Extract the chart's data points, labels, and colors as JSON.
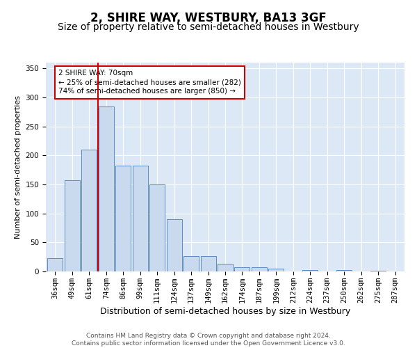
{
  "title": "2, SHIRE WAY, WESTBURY, BA13 3GF",
  "subtitle": "Size of property relative to semi-detached houses in Westbury",
  "xlabel": "Distribution of semi-detached houses by size in Westbury",
  "ylabel": "Number of semi-detached properties",
  "categories": [
    "36sqm",
    "49sqm",
    "61sqm",
    "74sqm",
    "86sqm",
    "99sqm",
    "111sqm",
    "124sqm",
    "137sqm",
    "149sqm",
    "162sqm",
    "174sqm",
    "187sqm",
    "199sqm",
    "212sqm",
    "224sqm",
    "237sqm",
    "250sqm",
    "262sqm",
    "275sqm",
    "287sqm"
  ],
  "values": [
    23,
    157,
    210,
    285,
    183,
    183,
    150,
    90,
    27,
    27,
    13,
    7,
    7,
    5,
    0,
    3,
    0,
    3,
    0,
    1,
    0
  ],
  "bar_color": "#c9d9ee",
  "bar_edge_color": "#5b8ac5",
  "vline_position": 2.5,
  "vline_color": "#cc0000",
  "annotation_text": "2 SHIRE WAY: 70sqm\n← 25% of semi-detached houses are smaller (282)\n74% of semi-detached houses are larger (850) →",
  "annotation_box_color": "#ffffff",
  "annotation_box_edge": "#cc0000",
  "ylim": [
    0,
    360
  ],
  "yticks": [
    0,
    50,
    100,
    150,
    200,
    250,
    300,
    350
  ],
  "footnote": "Contains HM Land Registry data © Crown copyright and database right 2024.\nContains public sector information licensed under the Open Government Licence v3.0.",
  "background_color": "#ffffff",
  "plot_bg_color": "#dce8f5",
  "grid_color": "#ffffff",
  "title_fontsize": 12,
  "subtitle_fontsize": 10,
  "xlabel_fontsize": 9,
  "ylabel_fontsize": 8,
  "tick_fontsize": 7.5,
  "footnote_fontsize": 6.5
}
